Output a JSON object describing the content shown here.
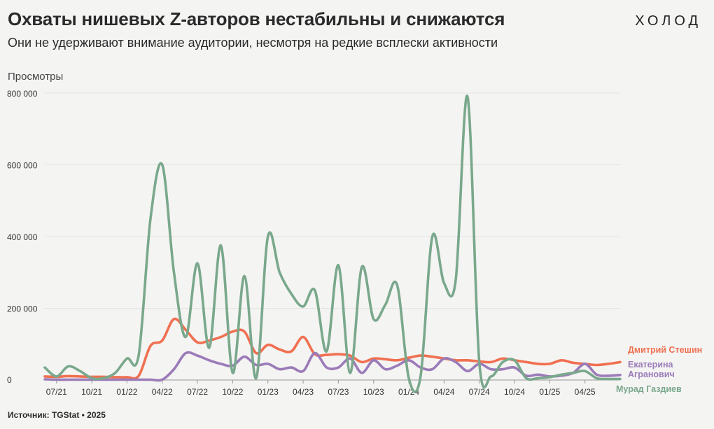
{
  "header": {
    "title": "Охваты нишевых Z-авторов нестабильны и снижаются",
    "subtitle": "Они не удерживают внимание аудитории, несмотря на редкие всплески активности",
    "logo": "ХОЛОД"
  },
  "footer": {
    "source": "Источник: TGStat • 2025"
  },
  "chart_data": {
    "type": "line",
    "ylabel": "Просмотры",
    "ylim": [
      0,
      800000
    ],
    "yticks": [
      0,
      200000,
      400000,
      600000,
      800000
    ],
    "ytick_labels": [
      "0",
      "200 000",
      "400 000",
      "600 000",
      "800 000"
    ],
    "grid": true,
    "x_start": "2021-06",
    "x_end": "2025-07",
    "xticks": [
      "2021-07",
      "2021-10",
      "2022-01",
      "2022-04",
      "2022-07",
      "2022-10",
      "2023-01",
      "2023-04",
      "2023-07",
      "2023-10",
      "2024-01",
      "2024-04",
      "2024-07",
      "2024-10",
      "2025-01",
      "2025-04"
    ],
    "xtick_labels": [
      "07/21",
      "10/21",
      "01/22",
      "04/22",
      "07/22",
      "10/22",
      "01/23",
      "04/23",
      "07/23",
      "10/23",
      "01/24",
      "04/24",
      "07/24",
      "10/24",
      "01/25",
      "04/25"
    ],
    "legend": "end-of-line labels",
    "series": [
      {
        "name": "Дмитрий Стешин",
        "label_lines": [
          "Дмитрий Стешин"
        ],
        "color": "#f07050",
        "values": [
          10000,
          9000,
          11000,
          10000,
          9000,
          9000,
          8000,
          8000,
          12000,
          95000,
          110000,
          170000,
          140000,
          105000,
          110000,
          120000,
          135000,
          135000,
          75000,
          98000,
          85000,
          80000,
          120000,
          72000,
          70000,
          72000,
          68000,
          50000,
          60000,
          58000,
          55000,
          62000,
          68000,
          65000,
          60000,
          55000,
          55000,
          52000,
          50000,
          60000,
          55000,
          50000,
          45000,
          45000,
          55000,
          48000,
          45000,
          42000,
          45000,
          50000
        ]
      },
      {
        "name": "Екатерина Агранович",
        "label_lines": [
          "Екатерина",
          "Агранович"
        ],
        "color": "#9b7bb8",
        "values": [
          2000,
          1000,
          1000,
          1000,
          1000,
          1000,
          1000,
          1000,
          1000,
          1000,
          1000,
          30000,
          75000,
          68000,
          55000,
          45000,
          40000,
          65000,
          42000,
          45000,
          30000,
          35000,
          25000,
          75000,
          35000,
          35000,
          60000,
          20000,
          55000,
          30000,
          40000,
          55000,
          35000,
          30000,
          60000,
          50000,
          25000,
          45000,
          30000,
          30000,
          35000,
          12000,
          15000,
          10000,
          12000,
          20000,
          45000,
          15000,
          12000,
          14000
        ]
      },
      {
        "name": "Мурад Газдиев",
        "label_lines": [
          "Мурад Газдиев"
        ],
        "color": "#7aa88c",
        "values": [
          35000,
          10000,
          38000,
          25000,
          5000,
          5000,
          20000,
          60000,
          70000,
          450000,
          600000,
          300000,
          120000,
          325000,
          90000,
          375000,
          20000,
          290000,
          5000,
          400000,
          300000,
          240000,
          205000,
          250000,
          80000,
          320000,
          20000,
          315000,
          170000,
          210000,
          265000,
          5000,
          10000,
          400000,
          270000,
          280000,
          790000,
          50000,
          10000,
          50000,
          55000,
          5000,
          5000,
          8000,
          15000,
          20000,
          25000,
          5000,
          3000,
          3000
        ]
      }
    ]
  }
}
